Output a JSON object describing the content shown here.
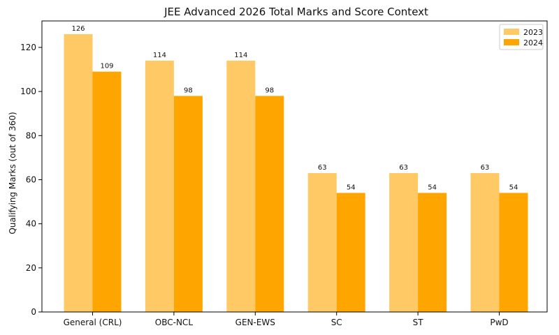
{
  "chart_data": {
    "type": "bar",
    "title": "JEE Advanced 2026 Total Marks and Score Context",
    "xlabel": "",
    "ylabel": "Qualifying Marks (out of 360)",
    "categories": [
      "General (CRL)",
      "OBC-NCL",
      "GEN-EWS",
      "SC",
      "ST",
      "PwD"
    ],
    "series": [
      {
        "name": "2023",
        "values": [
          126,
          114,
          114,
          63,
          63,
          63
        ],
        "color": "#FFC966"
      },
      {
        "name": "2024",
        "values": [
          109,
          98,
          98,
          54,
          54,
          54
        ],
        "color": "#FFA500"
      }
    ],
    "ylim": [
      0,
      132
    ],
    "yticks": [
      0,
      20,
      40,
      60,
      80,
      100,
      120
    ],
    "grid": false,
    "legend": "top-right"
  }
}
